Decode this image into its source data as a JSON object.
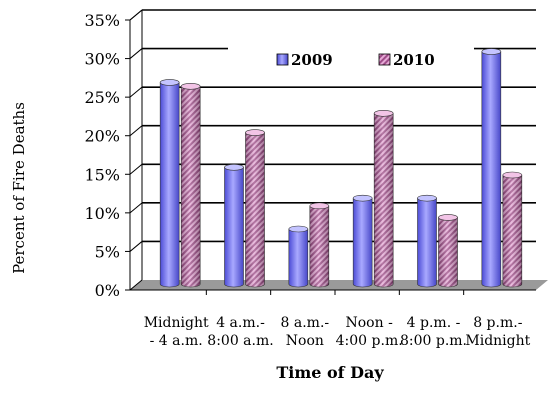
{
  "chart_data": {
    "type": "bar",
    "title": "",
    "xlabel": "Time of Day",
    "ylabel": "Percent of Fire Deaths",
    "ylim": [
      0,
      35
    ],
    "yticks": [
      0,
      5,
      10,
      15,
      20,
      25,
      30,
      35
    ],
    "ytick_labels": [
      "0%",
      "5%",
      "10%",
      "15%",
      "20%",
      "25%",
      "30%",
      "35%"
    ],
    "grid": true,
    "legend_position": "top-center",
    "categories": [
      [
        "Midnight",
        "- 4 a.m."
      ],
      [
        "4 a.m.-",
        "8:00 a.m."
      ],
      [
        "8 a.m.-",
        "Noon"
      ],
      [
        "Noon -",
        "4:00 p.m."
      ],
      [
        "4 p.m. -",
        "8:00 p.m."
      ],
      [
        "8 p.m.-",
        "Midnight"
      ]
    ],
    "series": [
      {
        "name": "2009",
        "color": "#7b7bf0",
        "values": [
          26,
          15,
          7,
          11,
          11,
          30
        ]
      },
      {
        "name": "2010",
        "color": "#c878b4",
        "values": [
          25.5,
          19.5,
          10,
          22,
          8.5,
          14
        ]
      }
    ]
  }
}
